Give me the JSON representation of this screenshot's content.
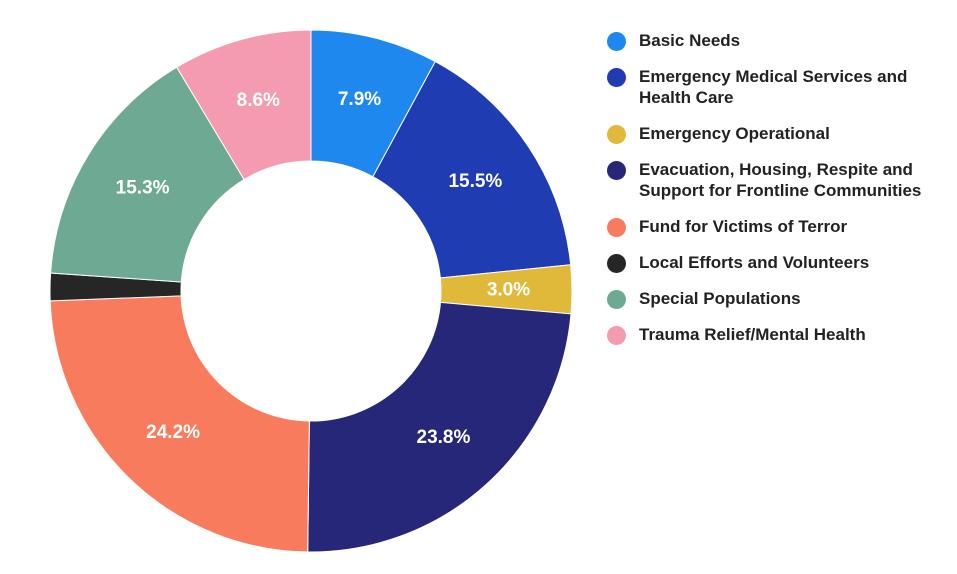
{
  "chart_data": {
    "type": "pie",
    "donut": true,
    "legend_position": "right",
    "series": [
      {
        "label": "Basic Needs",
        "value": 7.9,
        "display": "7.9%",
        "color": "#1f88ee"
      },
      {
        "label": "Emergency Medical Services and Health Care",
        "value": 15.5,
        "display": "15.5%",
        "color": "#1f3cb2"
      },
      {
        "label": "Emergency Operational",
        "value": 3.0,
        "display": "3.0%",
        "color": "#e0b93a"
      },
      {
        "label": "Evacuation, Housing, Respite and Support for Frontline Communities",
        "value": 23.8,
        "display": "23.8%",
        "color": "#27277a"
      },
      {
        "label": "Fund for Victims of Terror",
        "value": 24.2,
        "display": "24.2%",
        "color": "#f87b5e"
      },
      {
        "label": "Local Efforts and Volunteers",
        "value": 1.7,
        "display": "",
        "color": "#262626"
      },
      {
        "label": "Special Populations",
        "value": 15.3,
        "display": "15.3%",
        "color": "#6ea993"
      },
      {
        "label": "Trauma Relief/Mental Health",
        "value": 8.6,
        "display": "8.6%",
        "color": "#f49bb0"
      }
    ]
  }
}
